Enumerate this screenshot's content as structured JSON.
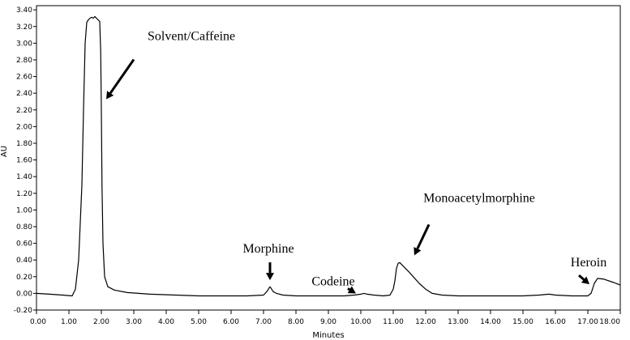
{
  "chart_data": {
    "type": "line",
    "title": "",
    "xlabel": "Minutes",
    "ylabel": "AU",
    "xlim": [
      0,
      18
    ],
    "ylim": [
      -0.2,
      3.45
    ],
    "grid": false,
    "x_ticks": [
      "0.00",
      "1.00",
      "2.00",
      "3.00",
      "4.00",
      "5.00",
      "6.00",
      "7.00",
      "8.00",
      "9.00",
      "10.00",
      "11.00",
      "12.00",
      "13.00",
      "14.00",
      "15.00",
      "16.00",
      "17.00",
      "18.00"
    ],
    "y_ticks": [
      "-0.20",
      "0.00",
      "0.20",
      "0.40",
      "0.60",
      "0.80",
      "1.00",
      "1.20",
      "1.40",
      "1.60",
      "1.80",
      "2.00",
      "2.20",
      "2.40",
      "2.60",
      "2.80",
      "3.00",
      "3.20",
      "3.40"
    ],
    "series": [
      {
        "x": [
          0.0,
          0.4,
          0.8,
          1.1,
          1.2,
          1.3,
          1.4,
          1.45,
          1.5,
          1.55,
          1.6,
          1.65,
          1.7,
          1.75,
          1.8,
          1.85,
          1.9,
          1.95,
          1.98,
          2.0,
          2.02,
          2.05,
          2.1,
          2.2,
          2.4,
          2.8,
          3.5,
          5.0,
          6.5,
          7.0,
          7.1,
          7.15,
          7.2,
          7.25,
          7.3,
          7.4,
          7.6,
          8.0,
          9.0,
          9.5,
          9.8,
          10.0,
          10.1,
          10.2,
          10.4,
          10.7,
          10.9,
          11.0,
          11.05,
          11.1,
          11.15,
          11.2,
          11.3,
          11.5,
          11.8,
          12.0,
          12.2,
          12.5,
          13.0,
          14.0,
          15.0,
          15.5,
          15.8,
          16.0,
          16.5,
          17.0,
          17.1,
          17.2,
          17.3,
          17.5,
          17.8,
          18.0
        ],
        "y": [
          0.0,
          -0.01,
          -0.02,
          -0.03,
          0.05,
          0.4,
          1.3,
          2.2,
          3.0,
          3.25,
          3.28,
          3.3,
          3.31,
          3.3,
          3.32,
          3.3,
          3.28,
          3.26,
          2.9,
          2.2,
          1.3,
          0.6,
          0.2,
          0.08,
          0.04,
          0.01,
          -0.01,
          -0.03,
          -0.03,
          -0.02,
          0.02,
          0.05,
          0.08,
          0.05,
          0.02,
          0.0,
          -0.02,
          -0.03,
          -0.03,
          -0.03,
          -0.02,
          -0.01,
          0.0,
          -0.01,
          -0.02,
          -0.03,
          -0.02,
          0.05,
          0.15,
          0.3,
          0.36,
          0.37,
          0.33,
          0.25,
          0.12,
          0.05,
          0.0,
          -0.02,
          -0.03,
          -0.03,
          -0.03,
          -0.02,
          -0.01,
          -0.02,
          -0.03,
          -0.03,
          0.0,
          0.12,
          0.18,
          0.17,
          0.13,
          0.1
        ]
      }
    ],
    "annotations": [
      {
        "text": "Solvent/Caffeine",
        "x": 2.0,
        "y": 2.3
      },
      {
        "text": "Morphine",
        "x": 7.2,
        "y": 0.1
      },
      {
        "text": "Codeine",
        "x": 9.9,
        "y": -0.02
      },
      {
        "text": "Monoacetylmorphine",
        "x": 11.6,
        "y": 0.35
      },
      {
        "text": "Heroin",
        "x": 17.15,
        "y": 0.08
      }
    ]
  }
}
